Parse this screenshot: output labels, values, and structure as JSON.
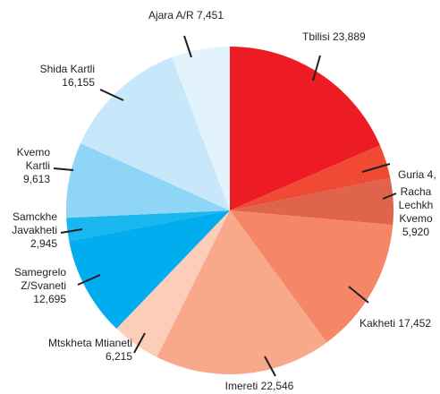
{
  "chart_data": {
    "type": "pie",
    "labels": [
      [
        "Tbilisi 23,889"
      ],
      [
        "Guria 4,"
      ],
      [
        "Racha",
        "Lechkh",
        "Kvemo",
        "5,920"
      ],
      [
        "Kakheti 17,452"
      ],
      [
        "Imereti 22,546"
      ],
      [
        "Mtskheta Mtianeti",
        "6,215"
      ],
      [
        "Samegrelo",
        "Z/Svaneti",
        "12,695"
      ],
      [
        "Samckhe",
        "Javakheti",
        "2,945"
      ],
      [
        "Kvemo",
        "Kartli",
        "9,613"
      ],
      [
        "Shida Kartli",
        "16,155"
      ],
      [
        "Ajara A/R 7,451"
      ]
    ],
    "values": [
      23889,
      4300,
      5920,
      17452,
      22546,
      6215,
      12695,
      2945,
      9613,
      16155,
      7451
    ],
    "colors": [
      "#ed1c24",
      "#f04a35",
      "#e0634c",
      "#f58767",
      "#f8a98a",
      "#fcceba",
      "#00adef",
      "#1ab7ee",
      "#8fd5f6",
      "#c7e8fa",
      "#e2f3fc"
    ]
  }
}
